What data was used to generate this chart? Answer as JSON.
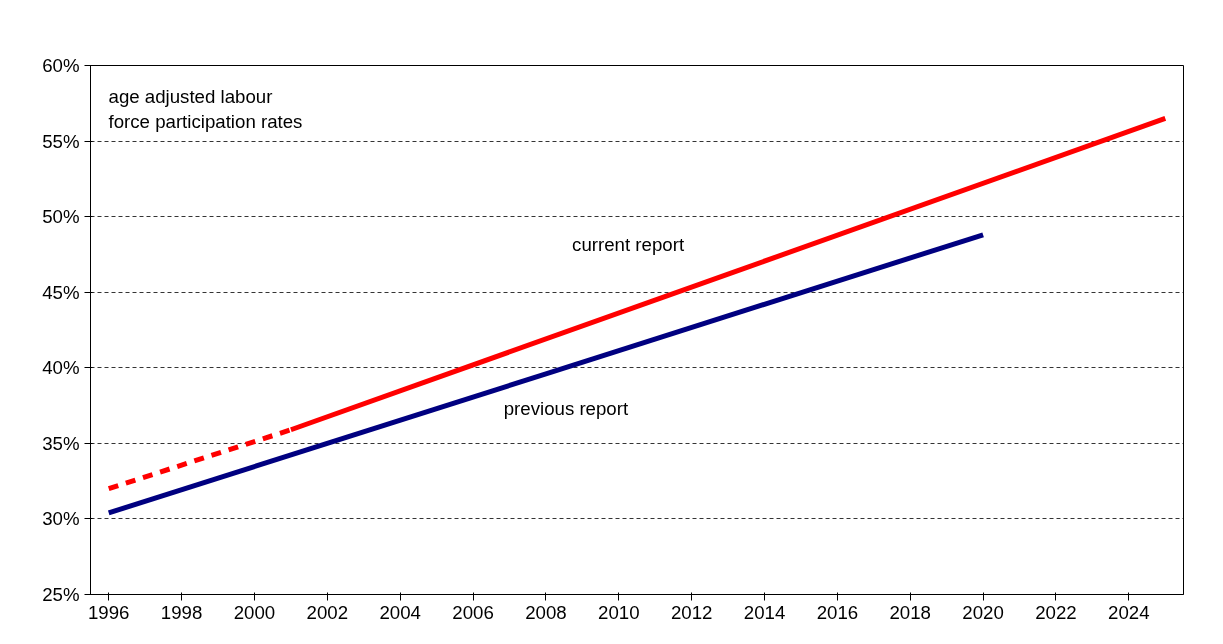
{
  "chart_data": {
    "type": "line",
    "series": [
      {
        "name": "previous report",
        "color": "#000080",
        "x": [
          1996,
          2008,
          2020
        ],
        "values": [
          30.4,
          39.6,
          48.8
        ]
      },
      {
        "color": "#ff0000",
        "x": [
          1996,
          2001
        ],
        "values": [
          32.0,
          35.9
        ],
        "line_style": "dashed"
      },
      {
        "name": "current report",
        "color": "#ff0000",
        "x": [
          2001,
          2013,
          2025
        ],
        "values": [
          35.9,
          46.2,
          56.5
        ]
      }
    ],
    "annotations": [
      "age adjusted labour\nforce participation rates"
    ],
    "xlim": [
      1995.5,
      2025.5
    ],
    "xticks": [
      1996,
      1998,
      2000,
      2002,
      2004,
      2006,
      2008,
      2010,
      2012,
      2014,
      2016,
      2018,
      2020,
      2022,
      2024
    ],
    "ylim": [
      25,
      60
    ],
    "yticks": [
      {
        "value": 25,
        "label": "25%"
      },
      {
        "value": 30,
        "label": "30%"
      },
      {
        "value": 35,
        "label": "35%"
      },
      {
        "value": 40,
        "label": "40%"
      },
      {
        "value": 45,
        "label": "45%"
      },
      {
        "value": 50,
        "label": "50%"
      },
      {
        "value": 55,
        "label": "55%"
      },
      {
        "value": 60,
        "label": "60%"
      }
    ],
    "grid": "y",
    "line_style": "solid",
    "marker": "none"
  }
}
